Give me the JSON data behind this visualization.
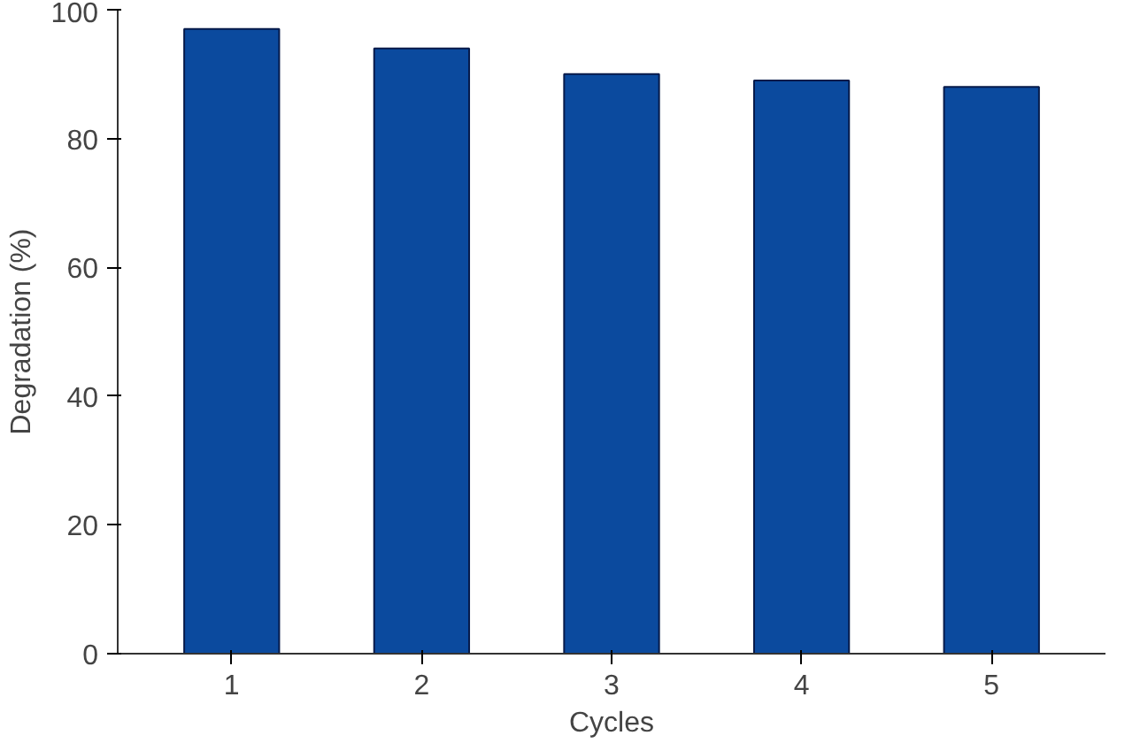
{
  "chart_data": {
    "type": "bar",
    "xlabel": "Cycles",
    "ylabel": "Degradation (%)",
    "categories": [
      "1",
      "2",
      "3",
      "4",
      "5"
    ],
    "values": [
      97,
      94,
      90,
      89,
      88
    ],
    "color": "#0b4a9e",
    "ylim": [
      0,
      100
    ],
    "yticks": [
      0,
      20,
      40,
      60,
      80,
      100
    ],
    "grid": false
  }
}
